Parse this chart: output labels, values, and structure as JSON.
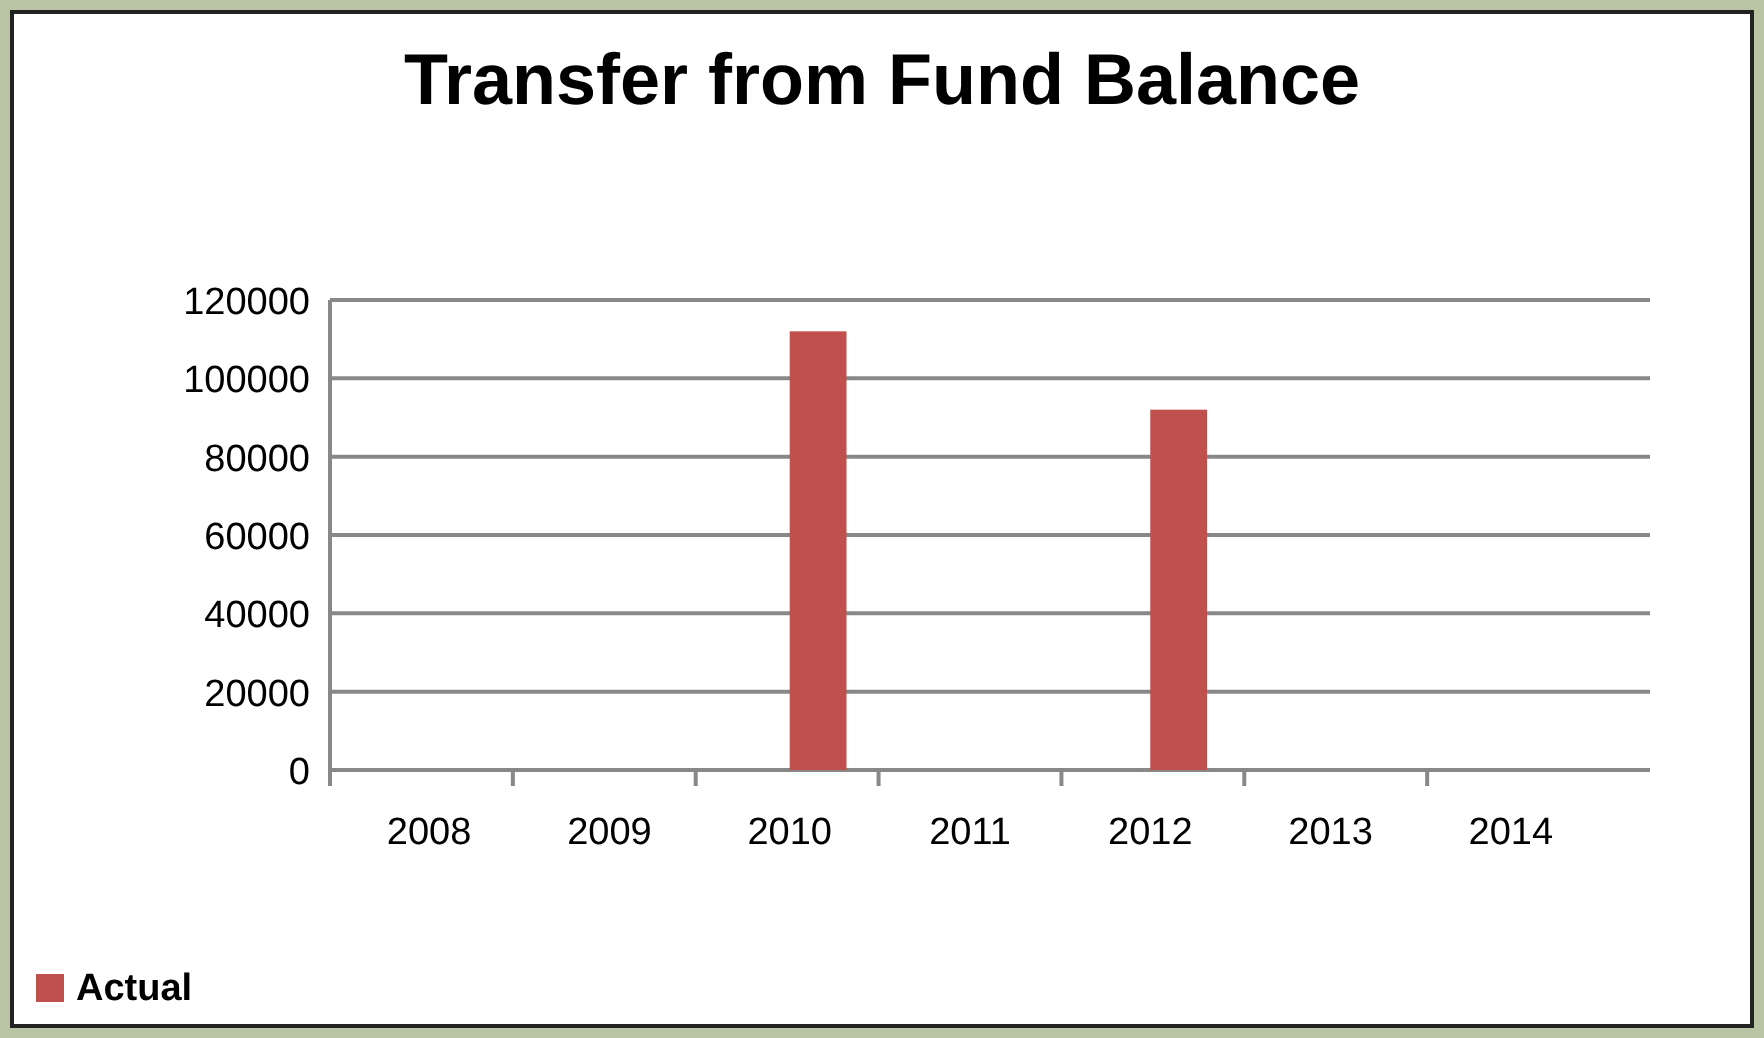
{
  "chart_data": {
    "type": "bar",
    "title": "Transfer from Fund Balance",
    "categories": [
      "2008",
      "2009",
      "2010",
      "2011",
      "2012",
      "2013",
      "2014"
    ],
    "series": [
      {
        "color": "#2e9a2e",
        "values": [
          0,
          null,
          null,
          null,
          null,
          null,
          null
        ]
      },
      {
        "name": "Actual",
        "color": "#c0504d",
        "values": [
          0,
          0,
          112000,
          0,
          92000,
          0,
          0
        ]
      }
    ],
    "ylim": [
      0,
      120000
    ],
    "yticks": [
      0,
      20000,
      40000,
      60000,
      80000,
      100000,
      120000
    ],
    "grid": "y",
    "legend": "bottom left"
  }
}
